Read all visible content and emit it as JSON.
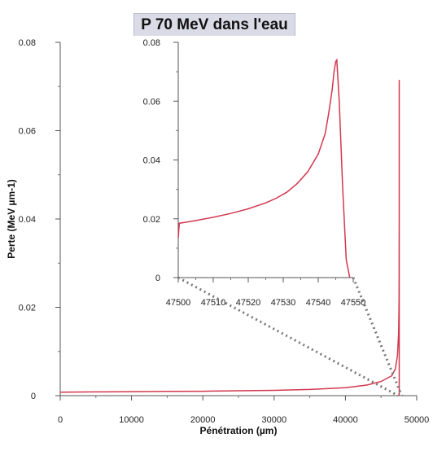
{
  "chart_data": [
    {
      "type": "line",
      "title": "P 70 MeV dans l'eau",
      "xlabel": "Pénétration (µm)",
      "ylabel": "Perte (MeV µm-1)",
      "xlim": [
        0,
        50000
      ],
      "ylim": [
        0,
        0.08
      ],
      "x_ticks": [
        0,
        10000,
        20000,
        30000,
        40000,
        50000
      ],
      "y_ticks": [
        0,
        0.02,
        0.04,
        0.06,
        0.08
      ],
      "grid": false,
      "series": [
        {
          "color": "#d2384e",
          "x": [
            0,
            5000,
            10000,
            15000,
            20000,
            25000,
            30000,
            35000,
            40000,
            43000,
            45000,
            46500,
            47000,
            47300,
            47450,
            47500,
            47520,
            47530,
            47535,
            47540,
            47545,
            47548,
            47550
          ],
          "y": [
            0.0008,
            0.00085,
            0.0009,
            0.00095,
            0.001,
            0.0011,
            0.0012,
            0.0014,
            0.0018,
            0.0024,
            0.0032,
            0.0045,
            0.006,
            0.009,
            0.014,
            0.0185,
            0.022,
            0.027,
            0.032,
            0.04,
            0.0715,
            0.0715,
            0.0
          ]
        }
      ]
    },
    {
      "type": "line",
      "xlim": [
        47500,
        47550
      ],
      "ylim": [
        0,
        0.08
      ],
      "x_ticks": [
        47500,
        47510,
        47520,
        47530,
        47540,
        47550
      ],
      "y_ticks": [
        0,
        0.02,
        0.04,
        0.06,
        0.08
      ],
      "grid": false,
      "series": [
        {
          "color": "#d2384e",
          "x": [
            47500,
            47500.3,
            47502,
            47505,
            47510,
            47515,
            47520,
            47525,
            47528,
            47531,
            47534,
            47537,
            47540,
            47542,
            47543,
            47544,
            47544.5,
            47545,
            47545.3,
            47546,
            47547,
            47548,
            47549
          ],
          "y": [
            0.0135,
            0.0185,
            0.0188,
            0.0194,
            0.0205,
            0.0218,
            0.0234,
            0.0254,
            0.027,
            0.029,
            0.032,
            0.036,
            0.042,
            0.049,
            0.056,
            0.064,
            0.07,
            0.0735,
            0.074,
            0.06,
            0.03,
            0.006,
            0.0
          ]
        }
      ]
    }
  ]
}
